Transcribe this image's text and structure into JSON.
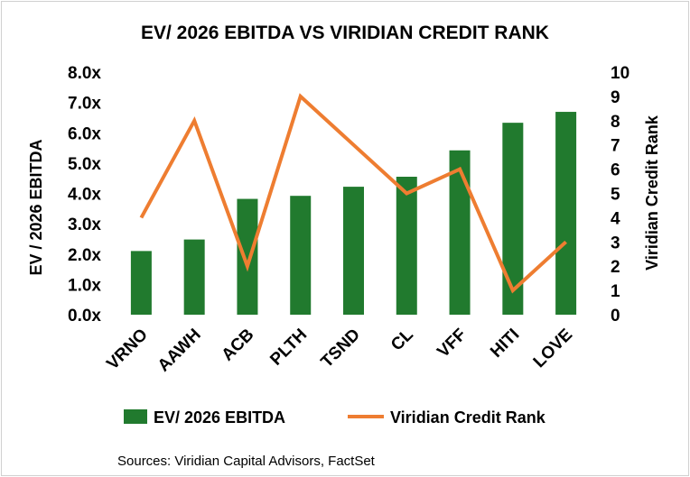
{
  "chart_data": {
    "type": "bar",
    "title": "EV/ 2026 EBITDA VS VIRIDIAN CREDIT RANK",
    "categories": [
      "VRNO",
      "AAWH",
      "ACB",
      "PLTH",
      "TSND",
      "CL",
      "VFF",
      "HITI",
      "LOVE"
    ],
    "series": [
      {
        "name": "EV/ 2026 EBITDA",
        "type": "bar",
        "axis": "left",
        "color": "#217a2e",
        "values": [
          2.1,
          2.48,
          3.82,
          3.92,
          4.22,
          4.55,
          5.42,
          6.33,
          6.69
        ]
      },
      {
        "name": "Viridian Credit Rank",
        "type": "line",
        "axis": "right",
        "color": "#ee7d31",
        "values": [
          4,
          8,
          2,
          9,
          7,
          5,
          6,
          1,
          3
        ]
      }
    ],
    "ylabel": "EV / 2026 EBITDA",
    "ylabel_right": "Viridian Credit Rank",
    "ylim": [
      0,
      8
    ],
    "ylim_right": [
      0,
      10
    ],
    "yticks": [
      "0.0x",
      "1.0x",
      "2.0x",
      "3.0x",
      "4.0x",
      "5.0x",
      "6.0x",
      "7.0x",
      "8.0x"
    ],
    "yticks_right": [
      "0",
      "1",
      "2",
      "3",
      "4",
      "5",
      "6",
      "7",
      "8",
      "9",
      "10"
    ],
    "grid": false,
    "legend": "bottom"
  },
  "source_note": "Sources: Viridian Capital Advisors, FactSet"
}
